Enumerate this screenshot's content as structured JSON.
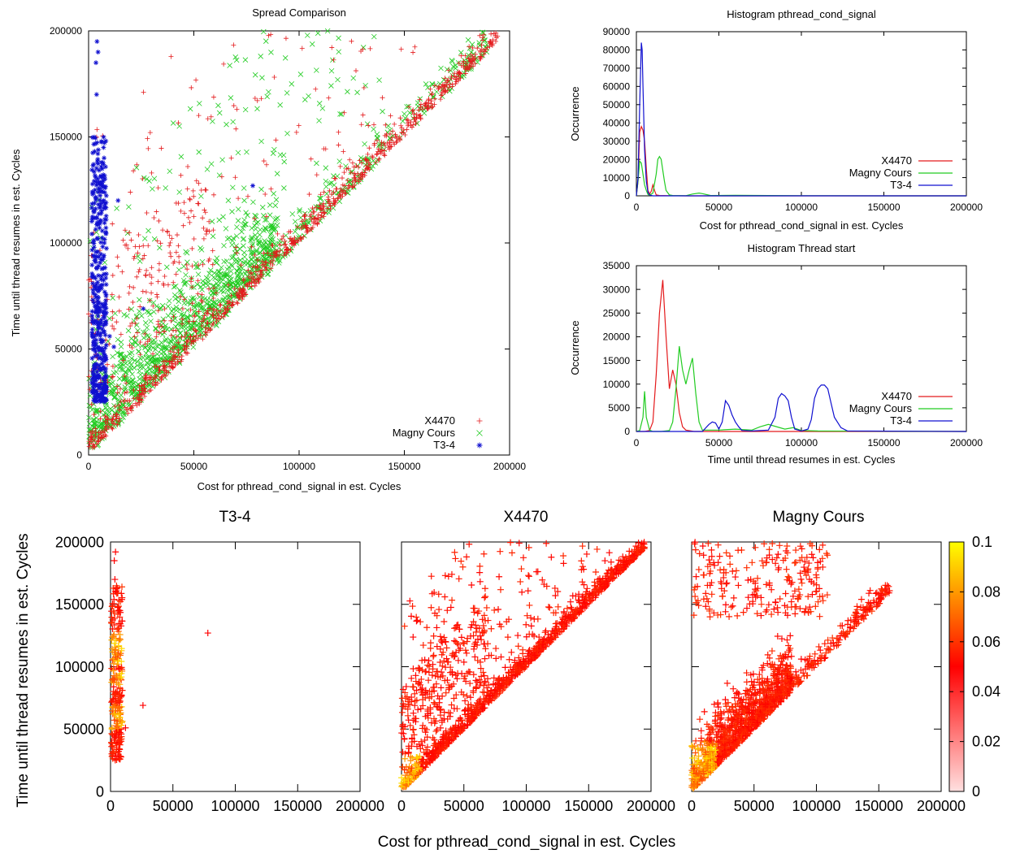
{
  "colors": {
    "x4470": "#e41a1c",
    "magny": "#22cc22",
    "t34": "#1010d0",
    "heat_low": "#ffe0e0",
    "heat_mid": "#ff0000",
    "heat_high": "#ffff00"
  },
  "chart_data": [
    {
      "id": "spread",
      "type": "scatter",
      "title": "Spread Comparison",
      "xlabel": "Cost for pthread_cond_signal in est. Cycles",
      "ylabel": "Time until thread resumes in est. Cycles",
      "xlim": [
        0,
        200000
      ],
      "ylim": [
        0,
        200000
      ],
      "xticks": [
        0,
        50000,
        100000,
        150000,
        200000
      ],
      "yticks": [
        0,
        50000,
        100000,
        150000,
        200000
      ],
      "legend_position": "bottom-right",
      "series": [
        {
          "name": "X4470",
          "marker": "+",
          "description_points": [
            [
              2000,
              5000
            ],
            [
              20000,
              25000
            ],
            [
              60000,
              70000
            ],
            [
              100000,
              110000
            ],
            [
              150000,
              155000
            ],
            [
              190000,
              195000
            ],
            [
              5000,
              180000
            ],
            [
              40000,
              160000
            ],
            [
              120000,
              190000
            ]
          ]
        },
        {
          "name": "Magny Cours",
          "marker": "x",
          "description_points": [
            [
              3000,
              8000
            ],
            [
              30000,
              60000
            ],
            [
              50000,
              90000
            ],
            [
              80000,
              120000
            ],
            [
              120000,
              160000
            ],
            [
              150000,
              190000
            ],
            [
              45000,
              200000
            ]
          ]
        },
        {
          "name": "T3-4",
          "marker": "*",
          "description_points": [
            [
              3000,
              30000
            ],
            [
              4000,
              80000
            ],
            [
              5000,
              130000
            ],
            [
              3500,
              190000
            ],
            [
              26000,
              69000
            ],
            [
              78000,
              127000
            ],
            [
              12000,
              52000
            ]
          ]
        }
      ]
    },
    {
      "id": "hist_signal",
      "type": "line",
      "title": "Histogram pthread_cond_signal",
      "xlabel": "Cost for pthread_cond_signal in est. Cycles",
      "ylabel": "Occurrence",
      "xlim": [
        0,
        200000
      ],
      "ylim": [
        0,
        90000
      ],
      "xticks": [
        0,
        50000,
        100000,
        150000,
        200000
      ],
      "yticks": [
        0,
        10000,
        20000,
        30000,
        40000,
        50000,
        60000,
        70000,
        80000,
        90000
      ],
      "legend_position": "right",
      "series": [
        {
          "name": "X4470",
          "x": [
            0,
            1000,
            2000,
            3000,
            4000,
            5000,
            6000,
            7000,
            8000,
            9000,
            10000,
            11000,
            12000,
            14000,
            20000,
            30000,
            40000,
            60000,
            100000,
            200000
          ],
          "values": [
            0,
            8000,
            35000,
            38000,
            36000,
            30000,
            15000,
            3000,
            1000,
            2500,
            6000,
            3000,
            500,
            200,
            100,
            0,
            0,
            0,
            0,
            0
          ]
        },
        {
          "name": "Magny Cours",
          "x": [
            0,
            1000,
            2000,
            3000,
            4000,
            5000,
            6000,
            7000,
            8000,
            10000,
            12000,
            13000,
            14000,
            15000,
            16000,
            17000,
            18000,
            20000,
            22000,
            30000,
            34000,
            38000,
            40000,
            45000,
            60000,
            80000,
            100000,
            150000,
            200000
          ],
          "values": [
            0,
            8000,
            19000,
            18000,
            12000,
            6000,
            3000,
            800,
            300,
            1500,
            12000,
            20000,
            21500,
            20000,
            14000,
            8000,
            3000,
            500,
            200,
            100,
            1000,
            1500,
            1200,
            200,
            300,
            200,
            100,
            0,
            0
          ]
        },
        {
          "name": "T3-4",
          "x": [
            0,
            1000,
            2000,
            3000,
            3500,
            4000,
            5000,
            6000,
            7000,
            8000,
            10000,
            20000,
            200000
          ],
          "values": [
            0,
            10000,
            50000,
            84000,
            80000,
            60000,
            25000,
            8000,
            2000,
            500,
            0,
            0,
            0
          ]
        }
      ]
    },
    {
      "id": "hist_start",
      "type": "line",
      "title": "Histogram Thread start",
      "xlabel": "Time until thread resumes in est. Cycles",
      "ylabel": "Occurrence",
      "xlim": [
        0,
        200000
      ],
      "ylim": [
        0,
        35000
      ],
      "xticks": [
        0,
        50000,
        100000,
        150000,
        200000
      ],
      "yticks": [
        0,
        5000,
        10000,
        15000,
        20000,
        25000,
        30000,
        35000
      ],
      "legend_position": "right",
      "series": [
        {
          "name": "X4470",
          "x": [
            0,
            5000,
            8000,
            10000,
            12000,
            14000,
            16000,
            18000,
            20000,
            22000,
            24000,
            26000,
            28000,
            30000,
            35000,
            200000
          ],
          "values": [
            0,
            0,
            200,
            2000,
            12000,
            25000,
            32000,
            20000,
            9000,
            13000,
            10000,
            4000,
            1000,
            300,
            0,
            0
          ]
        },
        {
          "name": "Magny Cours",
          "x": [
            0,
            2000,
            4000,
            5000,
            6000,
            8000,
            10000,
            15000,
            20000,
            22000,
            24000,
            26000,
            28000,
            30000,
            32000,
            34000,
            36000,
            38000,
            40000,
            50000,
            60000,
            70000,
            75000,
            80000,
            90000,
            95000,
            100000,
            110000,
            200000
          ],
          "values": [
            0,
            200,
            3000,
            8500,
            3000,
            300,
            0,
            0,
            200,
            2000,
            9000,
            18000,
            13000,
            10000,
            13000,
            15500,
            8000,
            2000,
            300,
            300,
            500,
            300,
            1000,
            1500,
            500,
            800,
            200,
            100,
            0
          ]
        },
        {
          "name": "T3-4",
          "x": [
            0,
            40000,
            44000,
            46000,
            48000,
            50000,
            52000,
            54000,
            56000,
            58000,
            60000,
            62000,
            64000,
            70000,
            80000,
            84000,
            86000,
            88000,
            90000,
            92000,
            94000,
            96000,
            100000,
            104000,
            106000,
            108000,
            110000,
            112000,
            114000,
            116000,
            118000,
            120000,
            124000,
            128000,
            200000
          ],
          "values": [
            0,
            0,
            1500,
            2000,
            1800,
            500,
            2000,
            6500,
            5500,
            3500,
            2000,
            1000,
            200,
            100,
            300,
            3000,
            7000,
            8000,
            7500,
            6500,
            3000,
            500,
            100,
            500,
            2500,
            7000,
            9000,
            9800,
            9800,
            9000,
            6000,
            3000,
            800,
            100,
            0
          ]
        }
      ]
    },
    {
      "id": "density_t34",
      "type": "heatmap",
      "title": "T3-4",
      "xlim": [
        0,
        200000
      ],
      "ylim": [
        0,
        200000
      ],
      "xticks": [
        0,
        50000,
        100000,
        150000,
        200000
      ],
      "yticks": [
        0,
        50000,
        100000,
        150000,
        200000
      ]
    },
    {
      "id": "density_x4470",
      "type": "heatmap",
      "title": "X4470",
      "xlim": [
        0,
        200000
      ],
      "ylim": [
        0,
        200000
      ],
      "xticks": [
        0,
        50000,
        100000,
        150000,
        200000
      ]
    },
    {
      "id": "density_magny",
      "type": "heatmap",
      "title": "Magny Cours",
      "xlim": [
        0,
        200000
      ],
      "ylim": [
        0,
        200000
      ],
      "xticks": [
        0,
        50000,
        100000,
        150000,
        200000
      ],
      "colorbar_ticks": [
        0,
        0.02,
        0.04,
        0.06,
        0.08,
        0.1
      ]
    }
  ],
  "bottom_labels": {
    "xlabel": "Cost for pthread_cond_signal in est. Cycles",
    "ylabel": "Time until thread resumes in est. Cycles"
  }
}
